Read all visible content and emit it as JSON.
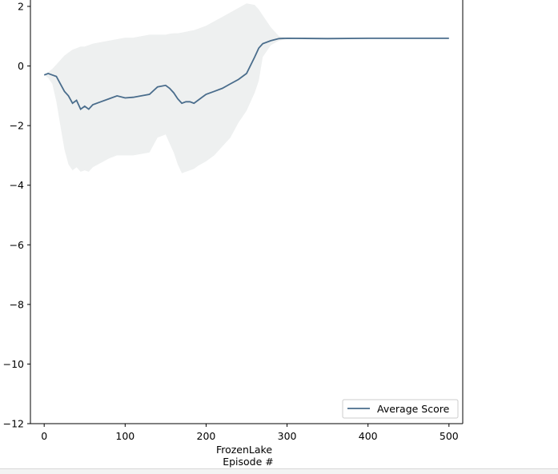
{
  "chart_data": {
    "type": "line",
    "title": "",
    "xlabel": "FrozenLake",
    "xlabel_line2": "Episode #",
    "ylabel": "",
    "xlim": [
      -17,
      517
    ],
    "ylim": [
      -12,
      2.2
    ],
    "x_ticks": [
      0,
      100,
      200,
      300,
      400,
      500
    ],
    "y_ticks": [
      2,
      0,
      -2,
      -4,
      -6,
      -8,
      -10,
      -12
    ],
    "x_tick_labels": [
      "0",
      "100",
      "200",
      "300",
      "400",
      "500"
    ],
    "y_tick_labels": [
      "2",
      "0",
      "−2",
      "−4",
      "−6",
      "−8",
      "−10",
      "−12"
    ],
    "grid": false,
    "legend": {
      "position": "bottom-right",
      "entries": [
        "Average Score"
      ]
    },
    "colors": {
      "line": "#4a6d8c",
      "band": "#eef0f0"
    },
    "series": [
      {
        "name": "Average Score",
        "x": [
          0,
          5,
          10,
          15,
          20,
          25,
          30,
          35,
          40,
          45,
          50,
          55,
          60,
          70,
          80,
          90,
          100,
          110,
          120,
          130,
          140,
          150,
          155,
          160,
          165,
          170,
          175,
          180,
          185,
          190,
          200,
          210,
          220,
          230,
          240,
          250,
          260,
          265,
          270,
          280,
          290,
          300,
          350,
          400,
          450,
          500
        ],
        "values": [
          -0.3,
          -0.25,
          -0.3,
          -0.35,
          -0.6,
          -0.85,
          -1.0,
          -1.25,
          -1.15,
          -1.45,
          -1.35,
          -1.45,
          -1.3,
          -1.2,
          -1.1,
          -1.0,
          -1.07,
          -1.05,
          -1.0,
          -0.95,
          -0.7,
          -0.65,
          -0.75,
          -0.9,
          -1.1,
          -1.25,
          -1.2,
          -1.2,
          -1.25,
          -1.15,
          -0.95,
          -0.85,
          -0.75,
          -0.6,
          -0.45,
          -0.25,
          0.3,
          0.6,
          0.75,
          0.85,
          0.92,
          0.93,
          0.92,
          0.93,
          0.93,
          0.93
        ],
        "band_upper": [
          -0.3,
          -0.2,
          -0.1,
          0.05,
          0.2,
          0.35,
          0.45,
          0.55,
          0.6,
          0.65,
          0.65,
          0.7,
          0.75,
          0.8,
          0.85,
          0.9,
          0.95,
          0.95,
          1.0,
          1.05,
          1.05,
          1.05,
          1.08,
          1.1,
          1.1,
          1.12,
          1.15,
          1.18,
          1.2,
          1.25,
          1.35,
          1.5,
          1.65,
          1.8,
          1.95,
          2.1,
          2.05,
          1.9,
          1.7,
          1.3,
          1.0,
          0.95,
          0.95,
          0.95,
          0.93,
          0.93
        ],
        "band_lower": [
          -0.3,
          -0.4,
          -0.6,
          -1.2,
          -2.0,
          -2.8,
          -3.3,
          -3.5,
          -3.4,
          -3.55,
          -3.5,
          -3.55,
          -3.4,
          -3.25,
          -3.1,
          -3.0,
          -3.0,
          -3.0,
          -2.95,
          -2.9,
          -2.4,
          -2.3,
          -2.6,
          -2.9,
          -3.3,
          -3.6,
          -3.55,
          -3.5,
          -3.45,
          -3.35,
          -3.2,
          -3.0,
          -2.7,
          -2.4,
          -1.9,
          -1.5,
          -0.9,
          -0.5,
          0.3,
          0.7,
          0.85,
          0.9,
          0.9,
          0.91,
          0.93,
          0.93
        ]
      }
    ]
  }
}
